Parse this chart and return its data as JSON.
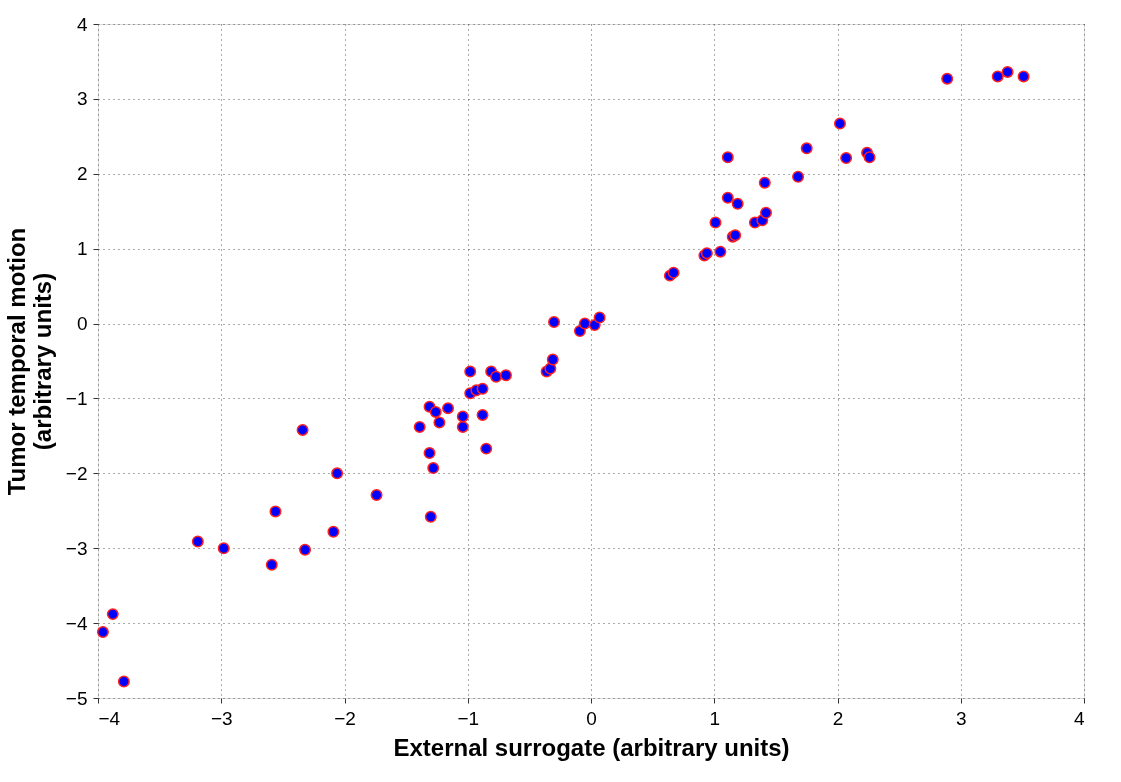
{
  "chart_data": {
    "type": "scatter",
    "xlabel": "External surrogate (arbitrary units)",
    "ylabel": "Tumor temporal motion\n(arbitrary units)",
    "xlim": [
      -4,
      4
    ],
    "ylim": [
      -5,
      4
    ],
    "xticks": [
      -4,
      -3,
      -2,
      -1,
      0,
      1,
      2,
      3,
      4
    ],
    "yticks": [
      -5,
      -4,
      -3,
      -2,
      -1,
      0,
      1,
      2,
      3,
      4
    ],
    "grid": true,
    "marker": "circle",
    "series": [
      {
        "color": "#0000ff",
        "x": [
          -3.96,
          -3.88,
          -3.79,
          -3.19,
          -2.98,
          -2.59,
          -2.32,
          -2.56,
          -2.34,
          -2.09,
          -2.06,
          -1.74,
          -1.3,
          -1.31,
          -1.28,
          -1.39,
          -1.31,
          -1.26,
          -1.23,
          -1.16,
          -1.04,
          -1.04,
          -0.88,
          -0.85,
          -0.98,
          -0.98,
          -0.93,
          -0.88,
          -0.81,
          -0.77,
          -0.69,
          -0.36,
          -0.33,
          -0.31,
          -0.3,
          -0.09,
          -0.05,
          0.03,
          0.07,
          0.64,
          0.67,
          0.92,
          0.94,
          1.05,
          1.15,
          1.17,
          1.01,
          1.33,
          1.39,
          1.42,
          1.11,
          1.19,
          1.41,
          1.11,
          1.68,
          1.75,
          2.02,
          2.07,
          2.24,
          2.26,
          2.89,
          3.3,
          3.38,
          3.51
        ],
        "values": [
          -4.12,
          -3.88,
          -4.78,
          -2.91,
          -3.0,
          -3.22,
          -3.02,
          -2.51,
          -1.42,
          -2.78,
          -2.0,
          -2.29,
          -2.58,
          -1.73,
          -1.93,
          -1.38,
          -1.11,
          -1.18,
          -1.32,
          -1.13,
          -1.24,
          -1.38,
          -1.22,
          -1.67,
          -0.64,
          -0.93,
          -0.89,
          -0.87,
          -0.64,
          -0.71,
          -0.69,
          -0.64,
          -0.6,
          -0.48,
          0.02,
          -0.1,
          0.0,
          -0.02,
          0.08,
          0.64,
          0.68,
          0.91,
          0.94,
          0.96,
          1.16,
          1.18,
          1.35,
          1.35,
          1.38,
          1.48,
          1.68,
          1.6,
          1.88,
          2.22,
          1.96,
          2.34,
          2.67,
          2.21,
          2.28,
          2.22,
          3.27,
          3.3,
          3.36,
          3.3
        ]
      }
    ]
  }
}
